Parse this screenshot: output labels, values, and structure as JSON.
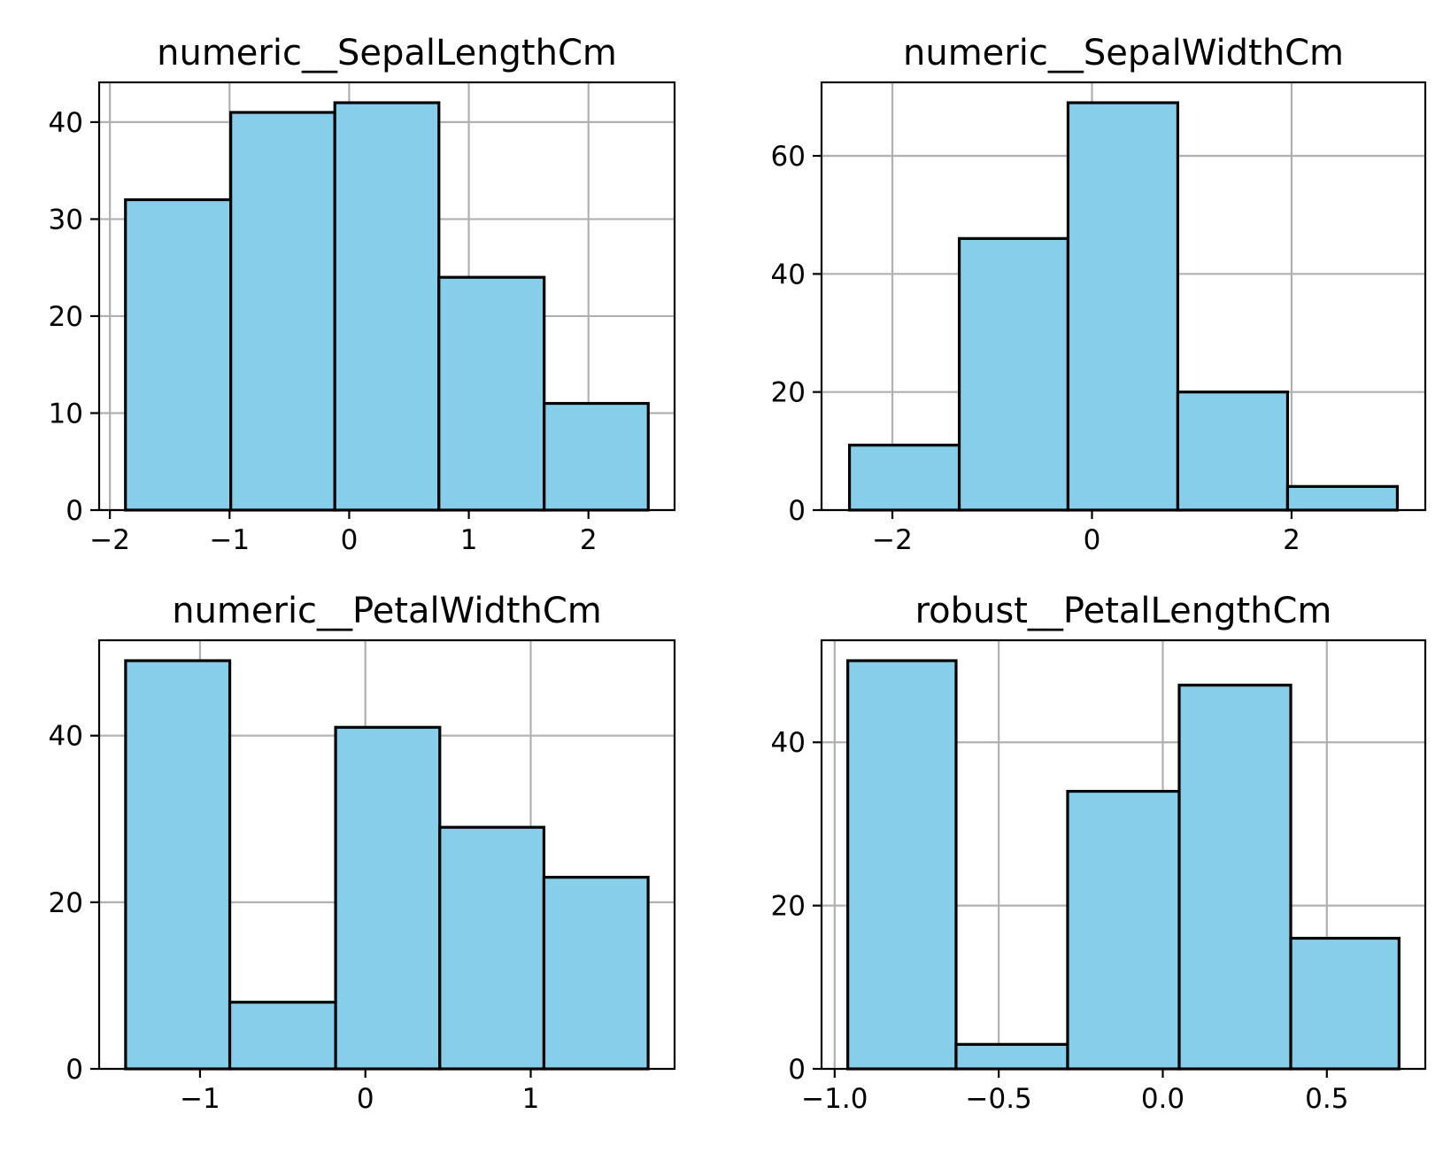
{
  "chart_data": [
    {
      "type": "bar",
      "title": "numeric__SepalLengthCm",
      "bins": [
        {
          "x0": -1.87,
          "x1": -0.99,
          "count": 32
        },
        {
          "x0": -0.99,
          "x1": -0.12,
          "count": 41
        },
        {
          "x0": -0.12,
          "x1": 0.75,
          "count": 42
        },
        {
          "x0": 0.75,
          "x1": 1.63,
          "count": 24
        },
        {
          "x0": 1.63,
          "x1": 2.5,
          "count": 11
        }
      ],
      "xlim": [
        -2.09,
        2.72
      ],
      "ylim": [
        0,
        44.1
      ],
      "xticks": [
        {
          "v": -2,
          "label": "−2"
        },
        {
          "v": -1,
          "label": "−1"
        },
        {
          "v": 0,
          "label": "0"
        },
        {
          "v": 1,
          "label": "1"
        },
        {
          "v": 2,
          "label": "2"
        }
      ],
      "yticks": [
        {
          "v": 0,
          "label": "0"
        },
        {
          "v": 10,
          "label": "10"
        },
        {
          "v": 20,
          "label": "20"
        },
        {
          "v": 30,
          "label": "30"
        },
        {
          "v": 40,
          "label": "40"
        }
      ],
      "grid": true,
      "color": "#87ceeb",
      "edgecolor": "#000000"
    },
    {
      "type": "bar",
      "title": "numeric__SepalWidthCm",
      "bins": [
        {
          "x0": -2.43,
          "x1": -1.33,
          "count": 11
        },
        {
          "x0": -1.33,
          "x1": -0.24,
          "count": 46
        },
        {
          "x0": -0.24,
          "x1": 0.86,
          "count": 69
        },
        {
          "x0": 0.86,
          "x1": 1.96,
          "count": 20
        },
        {
          "x0": 1.96,
          "x1": 3.06,
          "count": 4
        }
      ],
      "xlim": [
        -2.71,
        3.34
      ],
      "ylim": [
        0,
        72.45
      ],
      "xticks": [
        {
          "v": -2,
          "label": "−2"
        },
        {
          "v": 0,
          "label": "0"
        },
        {
          "v": 2,
          "label": "2"
        }
      ],
      "yticks": [
        {
          "v": 0,
          "label": "0"
        },
        {
          "v": 20,
          "label": "20"
        },
        {
          "v": 40,
          "label": "40"
        },
        {
          "v": 60,
          "label": "60"
        }
      ],
      "grid": true,
      "color": "#87ceeb",
      "edgecolor": "#000000"
    },
    {
      "type": "bar",
      "title": "numeric__PetalWidthCm",
      "bins": [
        {
          "x0": -1.45,
          "x1": -0.82,
          "count": 49
        },
        {
          "x0": -0.82,
          "x1": -0.18,
          "count": 8
        },
        {
          "x0": -0.18,
          "x1": 0.45,
          "count": 41
        },
        {
          "x0": 0.45,
          "x1": 1.08,
          "count": 29
        },
        {
          "x0": 1.08,
          "x1": 1.71,
          "count": 23
        }
      ],
      "xlim": [
        -1.61,
        1.87
      ],
      "ylim": [
        0,
        51.45
      ],
      "xticks": [
        {
          "v": -1,
          "label": "−1"
        },
        {
          "v": 0,
          "label": "0"
        },
        {
          "v": 1,
          "label": "1"
        }
      ],
      "yticks": [
        {
          "v": 0,
          "label": "0"
        },
        {
          "v": 20,
          "label": "20"
        },
        {
          "v": 40,
          "label": "40"
        }
      ],
      "grid": true,
      "color": "#87ceeb",
      "edgecolor": "#000000"
    },
    {
      "type": "bar",
      "title": "robust__PetalLengthCm",
      "bins": [
        {
          "x0": -0.96,
          "x1": -0.63,
          "count": 50
        },
        {
          "x0": -0.63,
          "x1": -0.29,
          "count": 3
        },
        {
          "x0": -0.29,
          "x1": 0.05,
          "count": 34
        },
        {
          "x0": 0.05,
          "x1": 0.39,
          "count": 47
        },
        {
          "x0": 0.39,
          "x1": 0.72,
          "count": 16
        }
      ],
      "xlim": [
        -1.04,
        0.8
      ],
      "ylim": [
        0,
        52.5
      ],
      "xticks": [
        {
          "v": -1.0,
          "label": "−1.0"
        },
        {
          "v": -0.5,
          "label": "−0.5"
        },
        {
          "v": 0.0,
          "label": "0.0"
        },
        {
          "v": 0.5,
          "label": "0.5"
        }
      ],
      "yticks": [
        {
          "v": 0,
          "label": "0"
        },
        {
          "v": 20,
          "label": "20"
        },
        {
          "v": 40,
          "label": "40"
        }
      ],
      "grid": true,
      "color": "#87ceeb",
      "edgecolor": "#000000"
    }
  ]
}
